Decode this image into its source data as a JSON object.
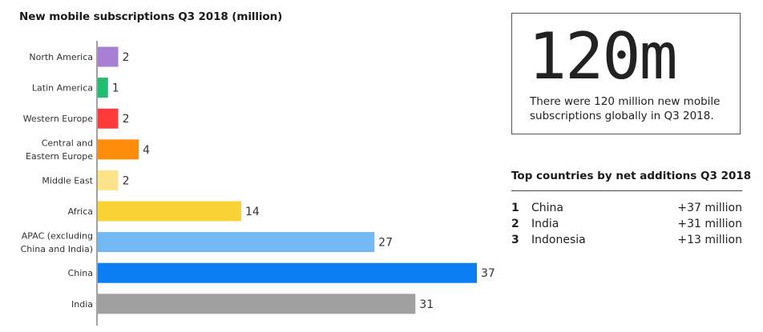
{
  "chart_data": {
    "type": "bar",
    "orientation": "horizontal",
    "title": "New mobile subscriptions Q3 2018 (million)",
    "categories": [
      "North America",
      "Latin America",
      "Western Europe",
      "Central and Eastern Europe",
      "Middle East",
      "Africa",
      "APAC (excluding China and India)",
      "China",
      "India"
    ],
    "category_lines": [
      [
        "North America"
      ],
      [
        "Latin America"
      ],
      [
        "Western Europe"
      ],
      [
        "Central and",
        "Eastern Europe"
      ],
      [
        "Middle East"
      ],
      [
        "Africa"
      ],
      [
        "APAC (excluding",
        "China and India)"
      ],
      [
        "China"
      ],
      [
        "India"
      ]
    ],
    "values": [
      2,
      1,
      2,
      4,
      2,
      14,
      27,
      37,
      31
    ],
    "colors": [
      "#a97fd6",
      "#1fbf6f",
      "#ff3a3a",
      "#ff8c0a",
      "#fde48a",
      "#f9d233",
      "#72b8f3",
      "#0a7ef2",
      "#a0a0a0"
    ],
    "xlim": [
      0,
      37
    ],
    "grid": false
  },
  "highlight": {
    "value": "120m",
    "description": "There were 120 million new mobile subscriptions globally in Q3 2018."
  },
  "top_countries": {
    "title": "Top countries by net additions Q3 2018",
    "rows": [
      {
        "rank": "1",
        "country": "China",
        "value": "+37 million"
      },
      {
        "rank": "2",
        "country": "India",
        "value": "+31 million"
      },
      {
        "rank": "3",
        "country": "Indonesia",
        "value": "+13 million"
      }
    ]
  }
}
